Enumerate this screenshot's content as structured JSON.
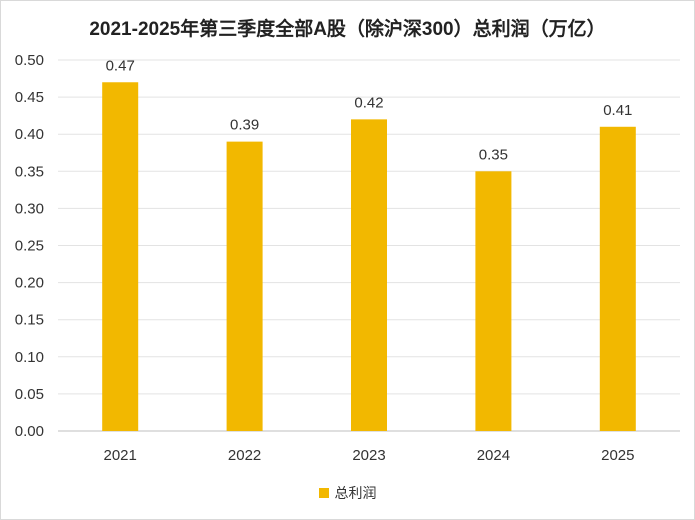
{
  "chart_data": {
    "type": "bar",
    "title": "2021-2025年第三季度全部A股（除沪深300）总利润（万亿）",
    "categories": [
      "2021",
      "2022",
      "2023",
      "2024",
      "2025"
    ],
    "series": [
      {
        "name": "总利润",
        "values": [
          0.47,
          0.39,
          0.42,
          0.35,
          0.41
        ],
        "color": "#f2b800"
      }
    ],
    "data_labels": [
      "0.47",
      "0.39",
      "0.42",
      "0.35",
      "0.41"
    ],
    "y_ticks": [
      "0.00",
      "0.05",
      "0.10",
      "0.15",
      "0.20",
      "0.25",
      "0.30",
      "0.35",
      "0.40",
      "0.45",
      "0.50"
    ],
    "ylim": [
      0,
      0.5
    ],
    "grid": true,
    "legend_position": "bottom"
  }
}
